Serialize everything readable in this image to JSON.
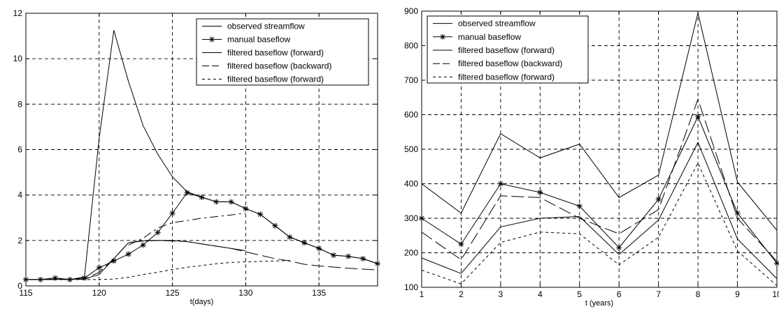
{
  "chart_data": [
    {
      "type": "line",
      "title": "",
      "xlabel": "t(days)",
      "ylabel": "",
      "xlim": [
        115,
        139
      ],
      "ylim": [
        0,
        12
      ],
      "xticks": [
        115,
        120,
        125,
        130,
        135
      ],
      "yticks": [
        0,
        2,
        4,
        6,
        8,
        10,
        12
      ],
      "grid": true,
      "legend_position": "top-right",
      "series": [
        {
          "name": "observed streamflow",
          "style": "solid",
          "marker": "none",
          "x": [
            115,
            116,
            117,
            118,
            119,
            120,
            121,
            122,
            123,
            124,
            125,
            126,
            127,
            128,
            129,
            130,
            131,
            132,
            133,
            134,
            135,
            136,
            137,
            138,
            139
          ],
          "y": [
            0.28,
            0.28,
            0.35,
            0.28,
            0.4,
            6.5,
            11.25,
            9.0,
            7.05,
            5.8,
            4.8,
            4.15,
            3.9,
            3.7,
            3.7,
            3.4,
            3.15,
            2.65,
            2.15,
            1.9,
            1.65,
            1.35,
            1.3,
            1.2,
            0.98
          ]
        },
        {
          "name": "manual baseflow",
          "style": "solid",
          "marker": "star",
          "x": [
            115,
            116,
            117,
            118,
            119,
            120,
            121,
            122,
            123,
            124,
            125,
            126,
            127,
            128,
            129,
            130,
            131,
            132,
            133,
            134,
            135,
            136,
            137,
            138,
            139
          ],
          "y": [
            0.28,
            0.28,
            0.35,
            0.28,
            0.35,
            0.8,
            1.1,
            1.4,
            1.8,
            2.35,
            3.2,
            4.1,
            3.9,
            3.7,
            3.7,
            3.4,
            3.15,
            2.65,
            2.15,
            1.9,
            1.65,
            1.35,
            1.3,
            1.2,
            0.98
          ]
        },
        {
          "name": "filtered baseflow (forward)",
          "style": "solid",
          "marker": "none",
          "x": [
            115,
            119,
            120,
            121,
            122,
            123,
            124,
            125,
            126,
            127,
            128,
            129,
            130
          ],
          "y": [
            0.28,
            0.3,
            0.5,
            1.2,
            1.9,
            1.98,
            2.0,
            2.0,
            1.95,
            1.85,
            1.75,
            1.65,
            1.55
          ]
        },
        {
          "name": "filtered baseflow (backward)",
          "style": "long-dash",
          "marker": "none",
          "x": [
            115,
            118,
            119,
            120,
            121,
            122,
            123,
            124,
            125,
            126,
            127,
            128,
            129,
            130,
            131,
            132,
            133,
            134,
            135,
            136,
            137,
            138,
            139
          ],
          "y": [
            0.28,
            0.28,
            0.3,
            0.6,
            1.2,
            1.9,
            2.0,
            2.0,
            1.98,
            1.95,
            1.85,
            1.75,
            1.65,
            1.5,
            1.35,
            1.2,
            1.1,
            0.95,
            0.88,
            0.83,
            0.78,
            0.74,
            0.7
          ]
        },
        {
          "name": "filtered baseflow (forward)",
          "style": "dash-dot",
          "marker": "none",
          "x": [
            122,
            123,
            124,
            125,
            126,
            127,
            128,
            129,
            130
          ],
          "y": [
            1.8,
            2.1,
            2.55,
            2.78,
            2.88,
            2.98,
            3.05,
            3.12,
            3.2
          ]
        },
        {
          "name": "filtered baseflow (forward)",
          "style": "short-dash",
          "marker": "none",
          "x": [
            115,
            118,
            119,
            120,
            121,
            122,
            123,
            124,
            125,
            126,
            127,
            128,
            129,
            130,
            131,
            132,
            133
          ],
          "y": [
            0.28,
            0.28,
            0.28,
            0.28,
            0.3,
            0.38,
            0.5,
            0.6,
            0.72,
            0.82,
            0.9,
            0.98,
            1.03,
            1.06,
            1.08,
            1.1,
            1.12
          ]
        }
      ],
      "legend": [
        "observed streamflow",
        "manual baseflow",
        "filtered baseflow (forward)",
        "filtered baseflow (backward)",
        "filtered baseflow (forward)"
      ]
    },
    {
      "type": "line",
      "title": "",
      "xlabel": "t (years)",
      "ylabel": "",
      "xlim": [
        1,
        10
      ],
      "ylim": [
        100,
        900
      ],
      "xticks": [
        1,
        2,
        3,
        4,
        5,
        6,
        7,
        8,
        9,
        10
      ],
      "yticks": [
        100,
        200,
        300,
        400,
        500,
        600,
        700,
        800,
        900
      ],
      "grid": true,
      "legend_position": "top-left",
      "series": [
        {
          "name": "observed streamflow",
          "style": "solid",
          "marker": "none",
          "x": [
            1,
            2,
            3,
            4,
            5,
            6,
            7,
            8,
            9,
            10
          ],
          "y": [
            400,
            315,
            545,
            475,
            515,
            360,
            425,
            895,
            405,
            265
          ]
        },
        {
          "name": "manual baseflow",
          "style": "solid",
          "marker": "star",
          "x": [
            1,
            2,
            3,
            4,
            5,
            6,
            7,
            8,
            9,
            10
          ],
          "y": [
            300,
            225,
            400,
            375,
            335,
            215,
            355,
            595,
            315,
            170
          ]
        },
        {
          "name": "filtered baseflow (forward)",
          "style": "solid",
          "marker": "none",
          "x": [
            1,
            2,
            3,
            4,
            5,
            6,
            7,
            8,
            9,
            10
          ],
          "y": [
            185,
            140,
            275,
            300,
            305,
            195,
            295,
            520,
            240,
            125
          ]
        },
        {
          "name": "filtered baseflow (backward)",
          "style": "long-dash",
          "marker": "none",
          "x": [
            1,
            2,
            3,
            4,
            5,
            6,
            7,
            8,
            9,
            10
          ],
          "y": [
            260,
            180,
            365,
            360,
            300,
            255,
            325,
            645,
            300,
            175
          ]
        },
        {
          "name": "filtered baseflow (forward)",
          "style": "short-dash",
          "marker": "none",
          "x": [
            1,
            2,
            3,
            4,
            5,
            6,
            7,
            8,
            9,
            10
          ],
          "y": [
            150,
            110,
            230,
            260,
            255,
            165,
            245,
            460,
            205,
            105
          ]
        }
      ],
      "legend": [
        "observed streamflow",
        "manual baseflow",
        "filtered baseflow (forward)",
        "filtered baseflow (backward)",
        "filtered baseflow (forward)"
      ]
    }
  ]
}
